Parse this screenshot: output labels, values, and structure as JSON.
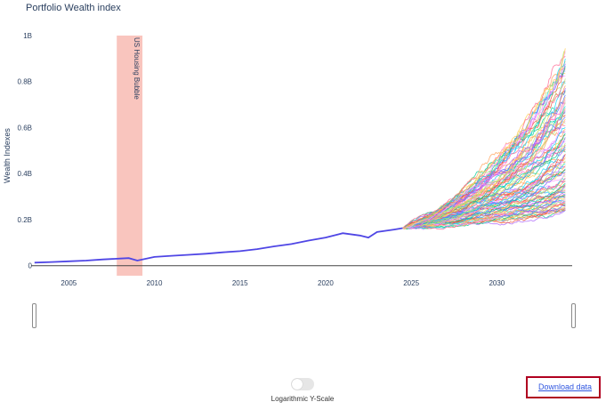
{
  "title": "Portfolio Wealth index",
  "controls": {
    "log_scale_label": "Logarithmic Y-Scale",
    "log_scale_on": false,
    "download_label": "Download data"
  },
  "chart_data": {
    "type": "line",
    "title": "Portfolio Wealth index",
    "xlabel": "",
    "ylabel": "Wealth Indexes",
    "xlim": [
      2002.8,
      2034.4
    ],
    "ylim": [
      -0.005,
      1.0
    ],
    "x_ticks": [
      2005,
      2010,
      2015,
      2020,
      2025,
      2030
    ],
    "y_ticks": [
      0,
      0.2,
      0.4,
      0.6,
      0.8,
      1.0
    ],
    "y_tick_labels": [
      "0",
      "0.2B",
      "0.4B",
      "0.6B",
      "0.8B",
      "1B"
    ],
    "grid": false,
    "legend": "none",
    "shaded_region": {
      "label": "US Housing Bubble",
      "x_start": 2007.8,
      "x_end": 2009.3,
      "color": "#f7b6ae"
    },
    "historical": {
      "color": "#4f46e5",
      "x": [
        2003,
        2004,
        2005,
        2006,
        2007,
        2008,
        2008.5,
        2009,
        2010,
        2011,
        2012,
        2013,
        2014,
        2015,
        2016,
        2017,
        2018,
        2019,
        2020,
        2021,
        2022,
        2022.5,
        2023,
        2024,
        2024.5
      ],
      "y": [
        0.013,
        0.016,
        0.019,
        0.022,
        0.027,
        0.031,
        0.033,
        0.022,
        0.038,
        0.043,
        0.047,
        0.052,
        0.058,
        0.063,
        0.072,
        0.084,
        0.094,
        0.109,
        0.122,
        0.141,
        0.131,
        0.122,
        0.146,
        0.157,
        0.163
      ]
    },
    "simulations": {
      "count": 100,
      "x_start": 2024.5,
      "x_end": 2034.0,
      "y_start": 0.163,
      "final_values_range": [
        0.24,
        0.95
      ],
      "median_final": 0.47,
      "colors": [
        "#636efa",
        "#ef553b",
        "#00cc96",
        "#ab63fa",
        "#ffa15a",
        "#19d3f3",
        "#ff6692",
        "#b6e880",
        "#ff97ff",
        "#fecb52"
      ]
    }
  }
}
